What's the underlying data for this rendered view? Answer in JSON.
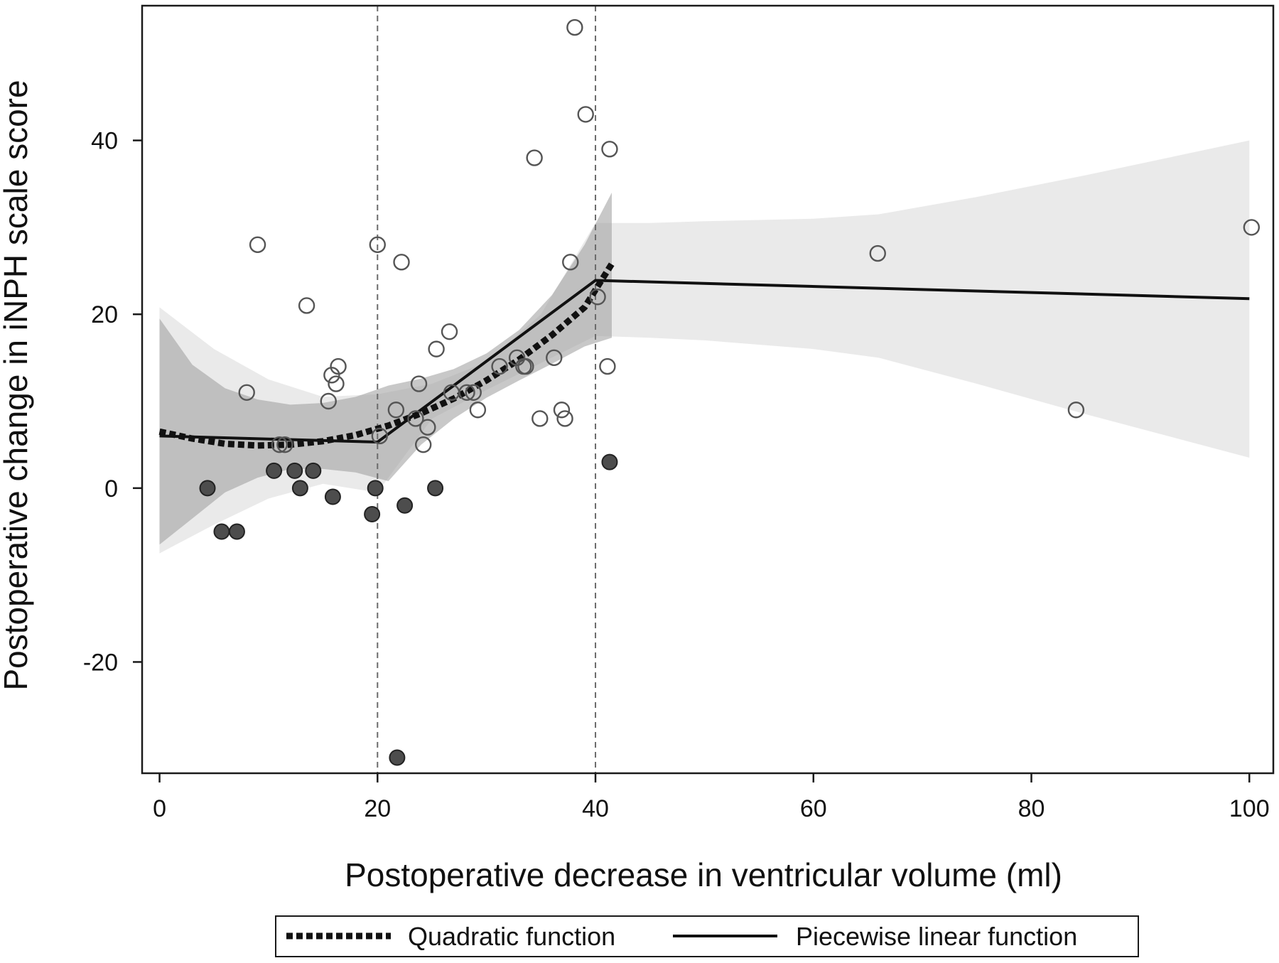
{
  "chart_data": {
    "type": "scatter",
    "title": "",
    "xlabel": "Postoperative decrease in ventricular volume (ml)",
    "ylabel": "Postoperative change in iNPH scale score",
    "xlim": [
      -1.6,
      102.2
    ],
    "ylim": [
      -32.8,
      55.5
    ],
    "x_ticks": [
      0,
      20,
      40,
      60,
      80,
      100
    ],
    "y_ticks": [
      -20,
      0,
      20,
      40
    ],
    "x_tick_labels": [
      "0",
      "20",
      "40",
      "60",
      "80",
      "100"
    ],
    "y_tick_labels": [
      "-20",
      "0",
      "20",
      "40"
    ],
    "grid": false,
    "reference_lines_x": [
      20,
      40
    ],
    "legend": {
      "position": "bottom",
      "entries": [
        {
          "label": "Quadratic function",
          "style": "dotted"
        },
        {
          "label": "Piecewise linear function",
          "style": "solid"
        }
      ]
    },
    "series": [
      {
        "style": "hollow-circle",
        "points": [
          [
            8,
            11
          ],
          [
            9,
            28
          ],
          [
            11,
            5
          ],
          [
            11.5,
            5
          ],
          [
            13.5,
            21
          ],
          [
            15.5,
            10
          ],
          [
            15.8,
            13
          ],
          [
            16.2,
            12
          ],
          [
            16.4,
            14
          ],
          [
            20,
            28
          ],
          [
            20.2,
            6
          ],
          [
            21.7,
            9
          ],
          [
            22.2,
            26
          ],
          [
            23.5,
            8
          ],
          [
            23.8,
            12
          ],
          [
            24.2,
            5
          ],
          [
            24.6,
            7
          ],
          [
            25.4,
            16
          ],
          [
            26.6,
            18
          ],
          [
            26.8,
            11
          ],
          [
            28.2,
            11
          ],
          [
            28.8,
            11
          ],
          [
            29.2,
            9
          ],
          [
            31.2,
            14
          ],
          [
            32.8,
            15
          ],
          [
            33.4,
            14
          ],
          [
            33.6,
            14
          ],
          [
            34.4,
            38
          ],
          [
            34.9,
            8
          ],
          [
            36.2,
            15
          ],
          [
            36.9,
            9
          ],
          [
            37.2,
            8
          ],
          [
            37.7,
            26
          ],
          [
            38.1,
            53
          ],
          [
            39.1,
            43
          ],
          [
            40.2,
            22
          ],
          [
            41.1,
            14
          ],
          [
            41.3,
            39
          ],
          [
            65.9,
            27
          ],
          [
            84.1,
            9
          ],
          [
            100.2,
            30
          ]
        ]
      },
      {
        "style": "filled-circle",
        "points": [
          [
            4.4,
            0
          ],
          [
            5.7,
            -5
          ],
          [
            7.1,
            -5
          ],
          [
            10.5,
            2
          ],
          [
            12.4,
            2
          ],
          [
            12.9,
            0
          ],
          [
            14.1,
            2
          ],
          [
            15.9,
            -1
          ],
          [
            19.5,
            -3
          ],
          [
            19.8,
            0
          ],
          [
            21.8,
            -31
          ],
          [
            22.5,
            -2
          ],
          [
            25.3,
            0
          ],
          [
            41.3,
            3
          ]
        ]
      },
      {
        "name": "Quadratic function",
        "style": "dotted",
        "x": [
          0,
          3,
          6,
          9,
          12,
          15,
          18,
          21,
          24,
          27,
          30,
          33,
          36,
          39,
          41.5
        ],
        "y": [
          6.5,
          5.7,
          5.1,
          4.9,
          5.0,
          5.4,
          6.1,
          7.2,
          8.6,
          10.3,
          12.4,
          14.8,
          17.6,
          20.8,
          25.8
        ],
        "ci_low": [
          -6.5,
          -3.5,
          -0.5,
          1.2,
          2.2,
          2.2,
          1.8,
          0.8,
          5.0,
          8.0,
          10.4,
          12.4,
          14.3,
          16.3,
          17.3
        ],
        "ci_high": [
          19.5,
          14.2,
          11.5,
          10.2,
          9.6,
          9.8,
          10.5,
          11.8,
          12.6,
          13.7,
          15.5,
          18.2,
          22.2,
          28.0,
          34.0
        ]
      },
      {
        "name": "Piecewise linear function",
        "style": "solid",
        "x": [
          0,
          20,
          40,
          100
        ],
        "y": [
          6.0,
          5.3,
          23.9,
          21.8
        ],
        "ci_x": [
          0,
          5,
          10,
          15,
          20,
          25,
          30,
          35,
          40,
          45,
          50,
          60,
          66,
          75,
          85,
          100
        ],
        "ci_low": [
          -7.5,
          -4.2,
          -1.2,
          0.5,
          -0.5,
          8.0,
          11.3,
          14.4,
          17.5,
          17.3,
          17.0,
          16.0,
          15.0,
          12.0,
          8.5,
          3.5
        ],
        "ci_high": [
          20.8,
          16.0,
          12.5,
          10.5,
          10.8,
          12.0,
          14.5,
          20.0,
          30.5,
          30.5,
          30.7,
          31.0,
          31.5,
          33.5,
          36.0,
          40.0
        ]
      }
    ]
  }
}
